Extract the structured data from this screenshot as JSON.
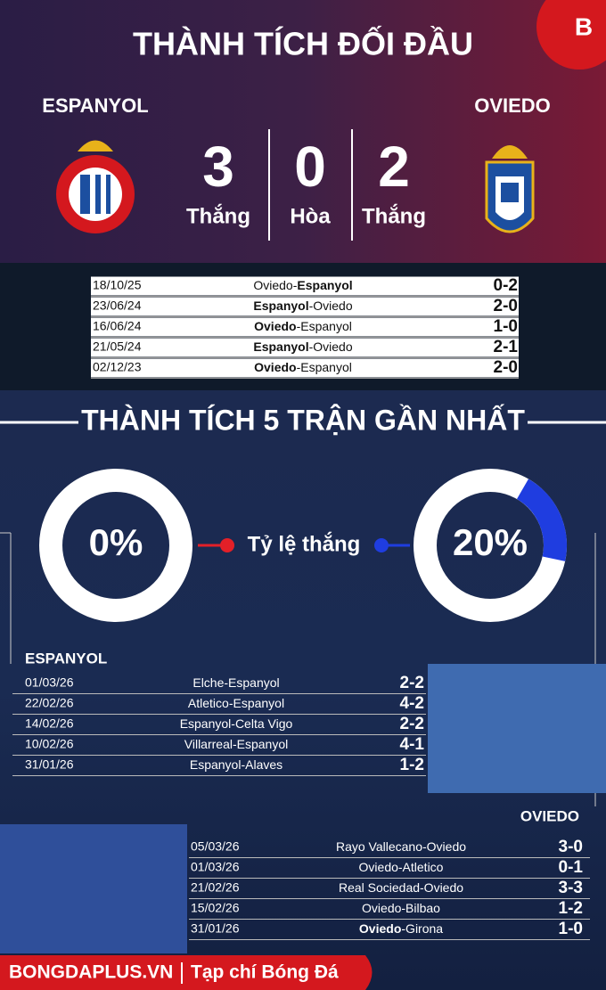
{
  "header": {
    "title": "THÀNH TÍCH ĐỐI ĐẦU",
    "logo": "B"
  },
  "teams": {
    "home": "ESPANYOL",
    "away": "OVIEDO"
  },
  "summary": [
    {
      "count": 3,
      "label": "Thắng"
    },
    {
      "count": 0,
      "label": "Hòa"
    },
    {
      "count": 2,
      "label": "Thắng"
    }
  ],
  "h2h": [
    {
      "date": "18/10/25",
      "match": [
        "Oviedo-",
        "Espanyol"
      ],
      "score": "0-2"
    },
    {
      "date": "23/06/24",
      "match": [
        "Espanyol",
        "-Oviedo"
      ],
      "score": "2-0"
    },
    {
      "date": "16/06/24",
      "match": [
        "Oviedo",
        "-Espanyol"
      ],
      "score": "1-0"
    },
    {
      "date": "21/05/24",
      "match": [
        "Espanyol",
        "-Oviedo"
      ],
      "score": "2-1"
    },
    {
      "date": "02/12/23",
      "match": [
        "Oviedo",
        "-Espanyol"
      ],
      "score": "2-0"
    }
  ],
  "recent": {
    "title": "THÀNH TÍCH 5 TRẬN GẦN NHẤT",
    "rate_label": "Tỷ lệ thắng",
    "win_rate": [
      {
        "value": 0,
        "label": "0%"
      },
      {
        "value": 20,
        "label": "20%"
      }
    ],
    "espanyol": {
      "team": "ESPANYOL",
      "matches": [
        {
          "date": "01/03/26",
          "match": [
            "Elche-Espanyol"
          ],
          "score": "2-2"
        },
        {
          "date": "22/02/26",
          "match": [
            "Atletico-Espanyol"
          ],
          "score": "4-2"
        },
        {
          "date": "14/02/26",
          "match": [
            "Espanyol-Celta Vigo"
          ],
          "score": "2-2"
        },
        {
          "date": "10/02/26",
          "match": [
            "Villarreal-Espanyol"
          ],
          "score": "4-1"
        },
        {
          "date": "31/01/26",
          "match": [
            "Espanyol-Alaves"
          ],
          "score": "1-2"
        }
      ]
    },
    "oviedo": {
      "team": "OVIEDO",
      "matches": [
        {
          "date": "05/03/26",
          "match": [
            "Rayo Vallecano-Oviedo"
          ],
          "score": "3-0"
        },
        {
          "date": "01/03/26",
          "match": [
            "Oviedo-Atletico"
          ],
          "score": "0-1"
        },
        {
          "date": "21/02/26",
          "match": [
            "Real Sociedad-Oviedo"
          ],
          "score": "3-3"
        },
        {
          "date": "15/02/26",
          "match": [
            "Oviedo-Bilbao"
          ],
          "score": "1-2"
        },
        {
          "date": "31/01/26",
          "match": [
            "Oviedo",
            "-Girona"
          ],
          "score": "1-0"
        }
      ]
    }
  },
  "footer": {
    "site": "BONGDAPLUS.VN",
    "subtitle": "Tạp chí Bóng Đá"
  }
}
